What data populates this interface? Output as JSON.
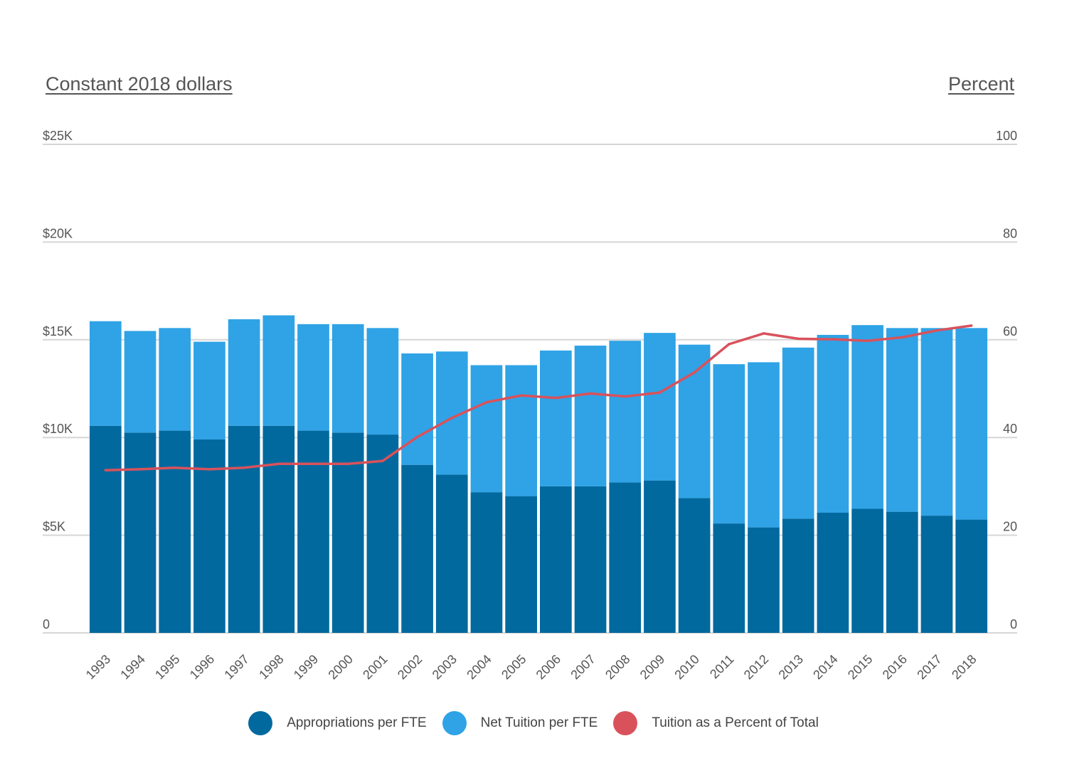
{
  "titles": {
    "left_axis": "Constant 2018 dollars",
    "right_axis": "Percent"
  },
  "colors": {
    "appropriations": "#02699f",
    "tuition": "#2fa3e6",
    "percent_line": "#d9525b",
    "grid": "#d6d6d6",
    "tick_text": "#555555"
  },
  "chart_data": {
    "type": "bar",
    "stacked": true,
    "categories": [
      "1993",
      "1994",
      "1995",
      "1996",
      "1997",
      "1998",
      "1999",
      "2000",
      "2001",
      "2002",
      "2003",
      "2004",
      "2005",
      "2006",
      "2007",
      "2008",
      "2009",
      "2010",
      "2011",
      "2012",
      "2013",
      "2014",
      "2015",
      "2016",
      "2017",
      "2018"
    ],
    "series": [
      {
        "name": "Appropriations per FTE",
        "axis": "left",
        "values": [
          10600,
          10250,
          10350,
          9900,
          10600,
          10600,
          10350,
          10250,
          10150,
          8600,
          8100,
          7200,
          7000,
          7500,
          7500,
          7700,
          7800,
          6900,
          5600,
          5400,
          5850,
          6150,
          6350,
          6200,
          6000,
          5800
        ]
      },
      {
        "name": "Net Tuition per FTE",
        "axis": "left",
        "values": [
          5350,
          5200,
          5250,
          5000,
          5450,
          5650,
          5450,
          5550,
          5450,
          5700,
          6300,
          6500,
          6700,
          6950,
          7200,
          7250,
          7550,
          7850,
          8150,
          8450,
          8750,
          9100,
          9400,
          9400,
          9600,
          9800
        ]
      },
      {
        "name": "Tuition as a Percent of Total",
        "type": "line",
        "axis": "right",
        "values": [
          33.3,
          33.5,
          33.8,
          33.5,
          33.8,
          34.6,
          34.6,
          34.6,
          35.2,
          40.1,
          44.0,
          47.2,
          48.6,
          48.1,
          49.0,
          48.4,
          49.2,
          53.3,
          59.1,
          61.3,
          60.2,
          60.1,
          59.8,
          60.5,
          61.9,
          62.9
        ]
      }
    ],
    "y_left": {
      "ticks": [
        "0",
        "$5K",
        "$10K",
        "$15K",
        "$20K",
        "$25K"
      ],
      "ylim": [
        0,
        25000
      ]
    },
    "y_right": {
      "ticks": [
        "0",
        "20",
        "40",
        "60",
        "80",
        "100"
      ],
      "ylim": [
        0,
        100
      ]
    },
    "grid": true,
    "legend": "bottom"
  }
}
